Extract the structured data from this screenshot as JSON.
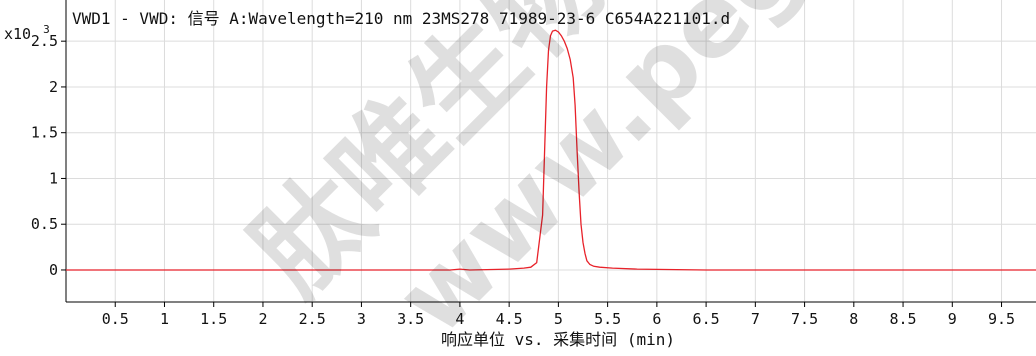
{
  "header": {
    "title": "VWD1 - VWD: 信号 A:Wavelength=210 nm 23MS278 71989-23-6 C654A221101.d"
  },
  "y_axis": {
    "multiplier_base": "x10",
    "multiplier_exp": "3"
  },
  "x_axis": {
    "label": "响应单位 vs. 采集时间 (min)"
  },
  "watermark": {
    "lines": [
      "肽唯生物科技",
      "www.pegt.com"
    ]
  },
  "chart_data": {
    "type": "line",
    "title": "VWD1 - VWD: 信号 A:Wavelength=210 nm 23MS278 71989-23-6 C654A221101.d",
    "xlabel": "响应单位 vs. 采集时间 (min)",
    "ylabel": "",
    "y_multiplier": "x10^3",
    "xlim": [
      0,
      9.85
    ],
    "ylim": [
      -0.35,
      2.95
    ],
    "x_ticks": [
      0.5,
      1,
      1.5,
      2,
      2.5,
      3,
      3.5,
      4,
      4.5,
      5,
      5.5,
      6,
      6.5,
      7,
      7.5,
      8,
      8.5,
      9,
      9.5
    ],
    "x_tick_labels": [
      "0.5",
      "1",
      "1.5",
      "2",
      "2.5",
      "3",
      "3.5",
      "4",
      "4.5",
      "5",
      "5.5",
      "6",
      "6.5",
      "7",
      "7.5",
      "8",
      "8.5",
      "9",
      "9.5"
    ],
    "y_ticks": [
      0,
      0.5,
      1,
      1.5,
      2,
      2.5
    ],
    "y_tick_labels": [
      "0",
      "0.5",
      "1",
      "1.5",
      "2",
      "2.5"
    ],
    "grid": true,
    "series": [
      {
        "color": "#e8222a",
        "x": [
          0.0,
          3.5,
          3.9,
          4.0,
          4.1,
          4.5,
          4.65,
          4.72,
          4.78,
          4.84,
          4.86,
          4.88,
          4.9,
          4.92,
          4.94,
          4.97,
          5.0,
          5.03,
          5.06,
          5.09,
          5.12,
          5.15,
          5.17,
          5.19,
          5.21,
          5.23,
          5.25,
          5.27,
          5.29,
          5.32,
          5.36,
          5.42,
          5.55,
          5.8,
          6.5,
          9.85
        ],
        "y": [
          0.0,
          0.0,
          0.0,
          0.01,
          0.0,
          0.01,
          0.02,
          0.03,
          0.08,
          0.6,
          1.3,
          2.0,
          2.4,
          2.56,
          2.61,
          2.62,
          2.6,
          2.56,
          2.5,
          2.42,
          2.3,
          2.1,
          1.8,
          1.3,
          0.85,
          0.5,
          0.3,
          0.18,
          0.1,
          0.06,
          0.04,
          0.03,
          0.02,
          0.01,
          0.0,
          0.0
        ]
      }
    ]
  }
}
